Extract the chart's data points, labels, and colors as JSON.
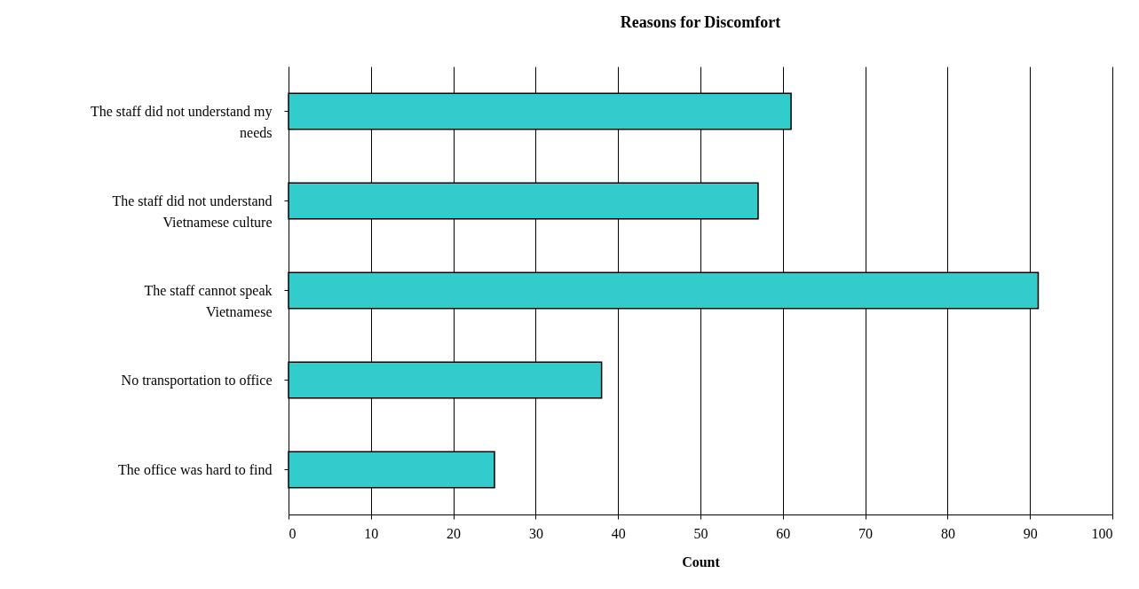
{
  "chart_data": {
    "type": "bar",
    "orientation": "horizontal",
    "title": "Reasons for Discomfort",
    "xlabel": "Count",
    "categories": [
      "The staff did not understand my needs",
      "The staff did not understand Vietnamese culture",
      "The staff cannot speak Vietnamese",
      "No transportation to office",
      "The office was hard to find"
    ],
    "values": [
      61,
      57,
      91,
      38,
      25
    ],
    "color": "#33cccc",
    "xlim": [
      0,
      100
    ],
    "xticks": [
      0,
      10,
      20,
      30,
      40,
      50,
      60,
      70,
      80,
      90,
      100
    ],
    "grid": "x"
  }
}
